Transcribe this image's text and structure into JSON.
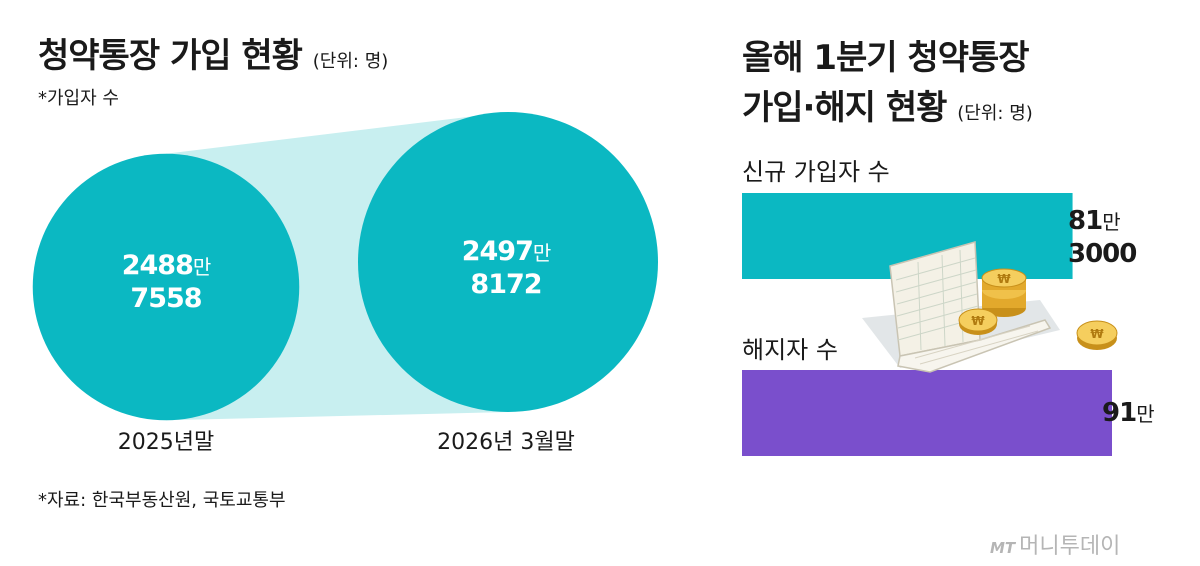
{
  "left": {
    "title": "청약통장 가입 현황",
    "unit": "(단위: 명)",
    "note": "*가입자 수",
    "source": "*자료: 한국부동산원, 국토교통부"
  },
  "right": {
    "title_line1": "올해 1분기 청약통장",
    "title_line2": "가입·해지 현황",
    "unit": "(단위: 명)"
  },
  "chart_data": [
    {
      "type": "bubble",
      "categories": [
        "2025년말",
        "2026년 3월말"
      ],
      "values": [
        24887558,
        24978172
      ],
      "labels": [
        {
          "main": "2488",
          "suffix": "만",
          "rest": "7558"
        },
        {
          "main": "2497",
          "suffix": "만",
          "rest": "8172"
        }
      ]
    },
    {
      "type": "bar",
      "categories": [
        "신규 가입자 수",
        "해지자 수"
      ],
      "values": [
        813000,
        910000
      ],
      "labels": [
        {
          "main": "81",
          "suffix": "만",
          "rest": "3000"
        },
        {
          "main": "91",
          "suffix": "만",
          "rest": ""
        }
      ],
      "colors": [
        "#0bb8c2",
        "#7a4fcc"
      ]
    }
  ],
  "colors": {
    "teal": "#0bb8c2",
    "teal_light": "#c8eff0",
    "purple": "#7a4fcc"
  },
  "logo": {
    "mark": "MT",
    "text": "머니투데이"
  }
}
